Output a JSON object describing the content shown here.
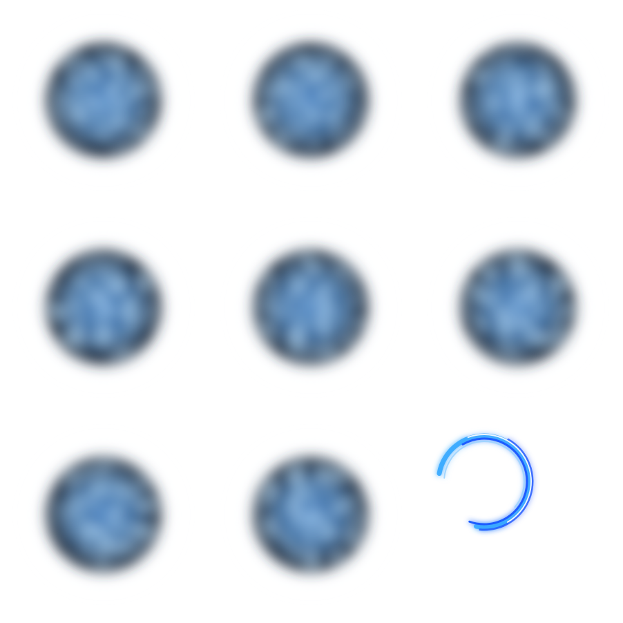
{
  "sprite_sheet": {
    "rows": 3,
    "columns": 3,
    "frames": [
      {
        "kind": "orb"
      },
      {
        "kind": "orb"
      },
      {
        "kind": "orb"
      },
      {
        "kind": "orb"
      },
      {
        "kind": "orb"
      },
      {
        "kind": "orb"
      },
      {
        "kind": "orb"
      },
      {
        "kind": "orb"
      },
      {
        "kind": "swirl-ring"
      }
    ]
  },
  "colors": {
    "background": "#ffffff",
    "orb_dark": "#1f2733",
    "orb_mid": "#3b6a9c",
    "orb_light": "#7fb4ec",
    "ring_blue": "#1e5bff",
    "ring_cyan": "#35a9ff",
    "ring_glow": "#9cd4ff"
  }
}
